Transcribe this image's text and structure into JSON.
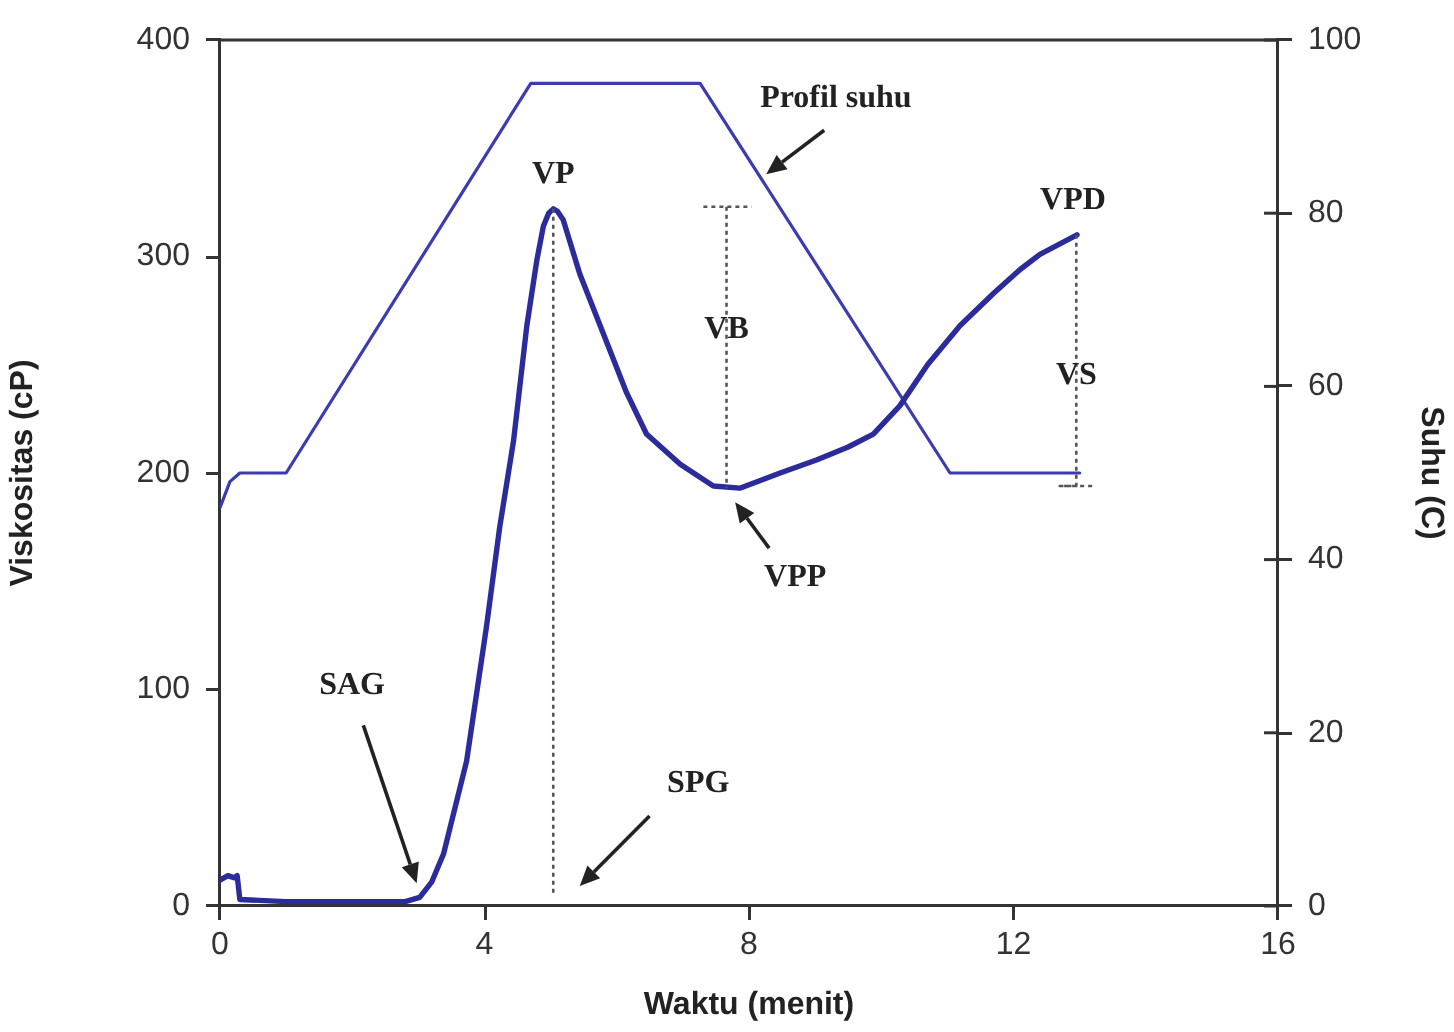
{
  "chart_data": {
    "type": "line",
    "xlabel": "Waktu (menit)",
    "ylabel": "Viskositas (cP)",
    "y2label": "Suhu (C)",
    "xlim": [
      0,
      16
    ],
    "xticks": [
      0,
      4,
      8,
      12,
      16
    ],
    "ylim": [
      0,
      400
    ],
    "yticks": [
      0,
      100,
      200,
      300,
      400
    ],
    "y2lim": [
      0,
      100
    ],
    "y2ticks": [
      0,
      20,
      40,
      60,
      80,
      100
    ],
    "series": [
      {
        "color": "#2b2b9b",
        "x": [
          0,
          0.12,
          0.22,
          0.26,
          0.3,
          1.0,
          2.0,
          2.8,
          3.02,
          3.2,
          3.38,
          3.73,
          4.03,
          4.23,
          4.44,
          4.64,
          4.79,
          4.89,
          4.97,
          5.04,
          5.1,
          5.19,
          5.44,
          5.75,
          6.15,
          6.45,
          6.96,
          7.46,
          7.86,
          8.47,
          9.02,
          9.5,
          9.88,
          10.28,
          10.7,
          11.19,
          11.7,
          12.1,
          12.4,
          12.96
        ],
        "values": [
          12,
          14,
          13,
          14,
          3,
          2,
          2,
          2,
          4,
          11,
          24,
          67,
          129,
          175,
          215,
          268,
          298,
          314,
          320,
          322,
          321,
          317,
          292,
          268,
          237,
          218,
          204,
          194,
          193,
          200,
          206,
          212,
          218,
          231,
          250,
          268,
          283,
          294,
          301,
          310
        ]
      },
      {
        "color": "#3c3cb0",
        "axis": "y2",
        "x": [
          0,
          0.15,
          0.3,
          1.0,
          4.7,
          7.26,
          11.04,
          13.0
        ],
        "values": [
          46,
          49,
          50,
          50,
          95,
          95,
          50,
          50
        ]
      },
      {
        "color": "#555555",
        "line_style": "dotted",
        "x": [
          5.04,
          5.04
        ],
        "values": [
          322,
          5
        ]
      },
      {
        "color": "#555555",
        "line_style": "dotted",
        "x": [
          7.31,
          8.04
        ],
        "values": [
          323,
          323
        ]
      },
      {
        "color": "#555555",
        "line_style": "dotted",
        "x": [
          7.66,
          7.66
        ],
        "values": [
          323,
          193
        ]
      },
      {
        "color": "#555555",
        "line_style": "dotted",
        "x": [
          12.95,
          12.95,
          12.7,
          13.21
        ],
        "values": [
          310,
          194,
          194,
          194
        ]
      }
    ],
    "annotations": [
      {
        "text": "Profil suhu",
        "x": 8.26,
        "y": 338
      },
      {
        "text": "VP",
        "x": 5.04,
        "y": 322
      },
      {
        "text": "VB",
        "x": 7.66,
        "y": 266
      },
      {
        "text": "VPD",
        "x": 12.96,
        "y": 310
      },
      {
        "text": "VS",
        "x": 12.95,
        "y": 245
      },
      {
        "text": "VPP",
        "x": 7.76,
        "y": 193
      },
      "SAG",
      "SPG"
    ],
    "legend": false
  }
}
